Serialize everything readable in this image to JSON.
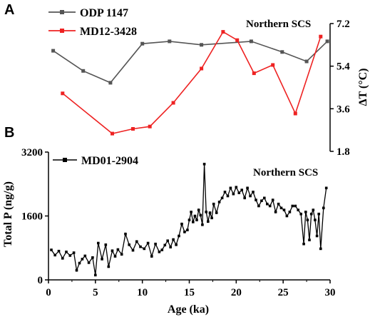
{
  "chart_data": [
    {
      "panel": "A",
      "type": "line",
      "annotation": "Northern SCS",
      "ylabel": "ΔT (°C)",
      "ylim": [
        1.8,
        7.2
      ],
      "yticks": [
        "1.8",
        "3.6",
        "5.4",
        "7.2"
      ],
      "xlim": [
        0,
        30
      ],
      "series": [
        {
          "name": "ODP 1147",
          "color": "#555555",
          "x": [
            0.5,
            3.7,
            6.6,
            10.0,
            12.9,
            16.3,
            21.6,
            24.9,
            27.5,
            29.7
          ],
          "y": [
            6.05,
            5.2,
            4.7,
            6.35,
            6.45,
            6.3,
            6.45,
            6.0,
            5.6,
            6.45
          ]
        },
        {
          "name": "MD12-3428",
          "color": "#ee2222",
          "x": [
            1.5,
            6.8,
            9.0,
            10.8,
            13.3,
            16.3,
            18.6,
            20.1,
            21.9,
            23.9,
            26.3,
            29.0
          ],
          "y": [
            4.25,
            2.55,
            2.75,
            2.85,
            3.85,
            5.3,
            6.85,
            6.5,
            5.1,
            5.45,
            3.4,
            6.65
          ]
        }
      ]
    },
    {
      "panel": "B",
      "type": "line",
      "annotation": "Northern SCS",
      "xlabel": "Age (ka)",
      "ylabel": "Total P (ng/g)",
      "ylim": [
        0,
        3200
      ],
      "yticks": [
        "0",
        "1600",
        "3200"
      ],
      "xlim": [
        0,
        30
      ],
      "xticks": [
        "0",
        "5",
        "10",
        "15",
        "20",
        "25",
        "30"
      ],
      "series": [
        {
          "name": "MD01-2904",
          "color": "#000000",
          "x": [
            0.3,
            0.7,
            1.1,
            1.5,
            1.9,
            2.3,
            2.7,
            3.0,
            3.3,
            3.6,
            3.9,
            4.3,
            4.7,
            5.0,
            5.3,
            5.7,
            6.1,
            6.4,
            6.8,
            7.1,
            7.4,
            7.8,
            8.2,
            8.6,
            9.0,
            9.4,
            9.8,
            10.2,
            10.6,
            11.0,
            11.4,
            11.8,
            12.1,
            12.4,
            12.7,
            13.0,
            13.3,
            13.6,
            13.9,
            14.2,
            14.5,
            14.8,
            15.0,
            15.2,
            15.4,
            15.6,
            15.8,
            16.0,
            16.2,
            16.4,
            16.6,
            16.8,
            17.0,
            17.2,
            17.4,
            17.6,
            17.9,
            18.2,
            18.5,
            18.8,
            19.1,
            19.4,
            19.7,
            20.0,
            20.3,
            20.6,
            20.9,
            21.2,
            21.5,
            21.8,
            22.1,
            22.4,
            22.7,
            23.0,
            23.3,
            23.6,
            23.9,
            24.2,
            24.5,
            24.8,
            25.1,
            25.4,
            25.7,
            26.0,
            26.3,
            26.6,
            26.9,
            27.2,
            27.4,
            27.6,
            27.8,
            28.0,
            28.2,
            28.4,
            28.6,
            28.8,
            29.0,
            29.3,
            29.6
          ],
          "y": [
            750,
            620,
            720,
            540,
            700,
            610,
            680,
            240,
            420,
            520,
            600,
            430,
            560,
            120,
            920,
            520,
            880,
            330,
            730,
            590,
            760,
            640,
            1150,
            880,
            740,
            960,
            830,
            780,
            920,
            590,
            900,
            700,
            750,
            870,
            980,
            820,
            1010,
            880,
            1100,
            1400,
            1200,
            1250,
            1500,
            1700,
            1450,
            1600,
            1500,
            1750,
            1620,
            1380,
            2900,
            1700,
            1460,
            1680,
            1550,
            1900,
            1680,
            1950,
            2050,
            2200,
            2100,
            2300,
            2150,
            2320,
            2180,
            2250,
            2050,
            2300,
            2100,
            2200,
            2000,
            1850,
            1980,
            2050,
            1900,
            1850,
            2000,
            1700,
            1900,
            1800,
            1750,
            1600,
            1700,
            1850,
            1850,
            1750,
            1650,
            900,
            1700,
            1500,
            1000,
            1650,
            1750,
            1500,
            1100,
            1650,
            780,
            1800,
            2300
          ]
        }
      ]
    }
  ],
  "panels": {
    "a_letter": "A",
    "b_letter": "B"
  }
}
